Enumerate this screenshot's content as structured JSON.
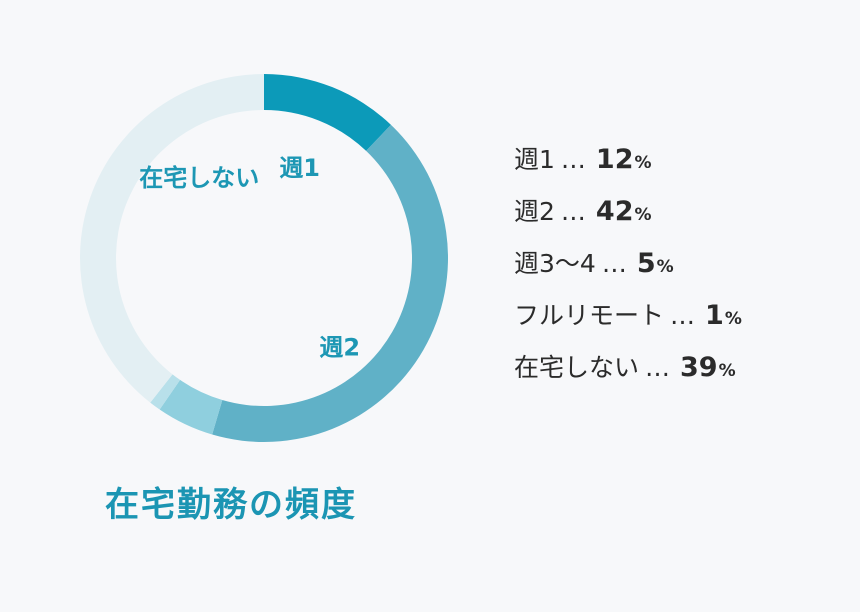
{
  "chart_data": {
    "type": "pie",
    "title": "在宅勤務の頻度",
    "unit": "%",
    "separator": "…",
    "slices": [
      {
        "label": "週1",
        "value": 12,
        "color": "#0c9ab9",
        "show_label": true
      },
      {
        "label": "週2",
        "value": 42,
        "color": "#60b1c7",
        "show_label": true
      },
      {
        "label": "週3〜4",
        "value": 5,
        "color": "#8fcfde",
        "show_label": false
      },
      {
        "label": "フルリモート",
        "value": 1,
        "color": "#b8e0ea",
        "show_label": false
      },
      {
        "label": "在宅しない",
        "value": 39,
        "color": "#e3eff3",
        "show_label": true
      }
    ]
  }
}
